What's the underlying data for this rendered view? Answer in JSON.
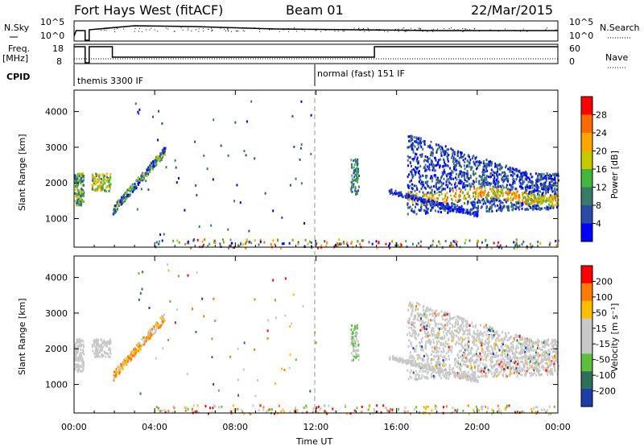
{
  "header": {
    "station": "Fort Hays West (fitACF)",
    "beam": "Beam 01",
    "date": "22/Mar/2015"
  },
  "params": {
    "nsky_label": "N.Sky",
    "nsearch_label": "N.Search",
    "nsky_ticks": [
      "10^5",
      "10^0"
    ],
    "nsearch_ticks": [
      "10^5",
      "10^0"
    ],
    "freq_label": "Freq.",
    "freq_unit": "[MHz]",
    "freq_ticks": [
      "18",
      "8"
    ],
    "nave_label": "Nave",
    "nave_ticks": [
      "60",
      "0"
    ],
    "cpid_label": "CPID",
    "cpid_segments": [
      "themis 3300 IF",
      "normal (fast) 151 IF"
    ]
  },
  "chart_data": [
    {
      "type": "heatmap",
      "name": "power",
      "ylabel": "Slant Range [km]",
      "yticks": [
        1000,
        2000,
        3000,
        4000
      ],
      "ylim": [
        200,
        4600
      ],
      "colorbar_label": "Power [dB]",
      "colorbar_ticks": [
        "28",
        "24",
        "20",
        "16",
        "12",
        "8",
        "4"
      ],
      "colors": [
        "#0000ff",
        "#2c4ba7",
        "#3a7a6a",
        "#42b73e",
        "#c8c800",
        "#ffa500",
        "#ff6a00",
        "#ff0000"
      ],
      "features": [
        {
          "t": [
            0.0,
            0.45
          ],
          "r": [
            1450,
            2250
          ],
          "level": 3
        },
        {
          "t": [
            0.8,
            1.8
          ],
          "r": [
            1800,
            2300
          ],
          "level": 4
        },
        {
          "t": [
            1.9,
            4.5
          ],
          "r": [
            1300,
            3000
          ],
          "level": 2
        },
        {
          "t": [
            13.7,
            14.1
          ],
          "r": [
            1700,
            2700
          ],
          "level": 3
        },
        {
          "t": [
            16.5,
            24.0
          ],
          "r": [
            1100,
            3500
          ],
          "level": 5
        }
      ]
    },
    {
      "type": "heatmap",
      "name": "velocity",
      "ylabel": "Slant Range [km]",
      "yticks": [
        1000,
        2000,
        3000,
        4000
      ],
      "ylim": [
        200,
        4600
      ],
      "colorbar_label": "Velocity [m s⁻¹]",
      "colorbar_ticks": [
        "200",
        "100",
        "50",
        "15",
        "-15",
        "-50",
        "-100",
        "-200"
      ],
      "colors": [
        "#1e3ca8",
        "#2f6f5a",
        "#5cc03c",
        "#c8c8c8",
        "#c8c8c8",
        "#ffbf00",
        "#ff7a00",
        "#ff0000"
      ]
    }
  ],
  "xaxis": {
    "label": "Time UT",
    "ticks": [
      "00:00",
      "04:00",
      "08:00",
      "12:00",
      "16:00",
      "20:00",
      "00:00"
    ],
    "range_hours": [
      0,
      24
    ]
  }
}
